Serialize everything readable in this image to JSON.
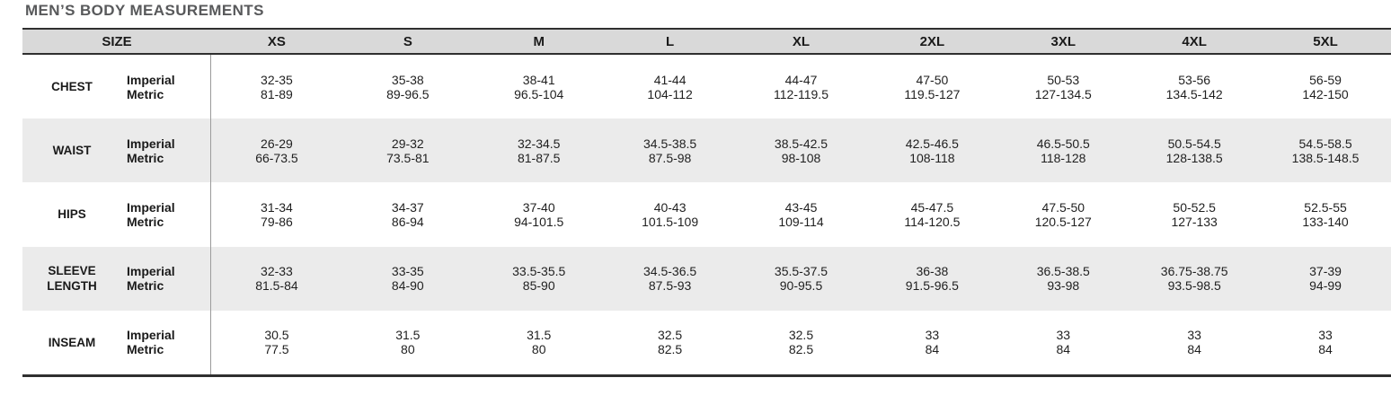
{
  "page": {
    "title": "MEN’S BODY MEASUREMENTS"
  },
  "colors": {
    "header_bg": "#d9d9d9",
    "alt_row_bg": "#ebebeb",
    "border_dark": "#2f2f2f",
    "divider_gray": "#9b9b9b",
    "title_color": "#58595b",
    "text_color": "#1f1f1f"
  },
  "chart_data": {
    "type": "table",
    "title": "MEN’S BODY MEASUREMENTS",
    "columns": [
      "SIZE",
      "XS",
      "S",
      "M",
      "L",
      "XL",
      "2XL",
      "3XL",
      "4XL",
      "5XL"
    ],
    "unit_rows": [
      "Imperial",
      "Metric"
    ],
    "rows": [
      {
        "label": "CHEST",
        "imperial": [
          "32-35",
          "35-38",
          "38-41",
          "41-44",
          "44-47",
          "47-50",
          "50-53",
          "53-56",
          "56-59"
        ],
        "metric": [
          "81-89",
          "89-96.5",
          "96.5-104",
          "104-112",
          "112-119.5",
          "119.5-127",
          "127-134.5",
          "134.5-142",
          "142-150"
        ]
      },
      {
        "label": "WAIST",
        "imperial": [
          "26-29",
          "29-32",
          "32-34.5",
          "34.5-38.5",
          "38.5-42.5",
          "42.5-46.5",
          "46.5-50.5",
          "50.5-54.5",
          "54.5-58.5"
        ],
        "metric": [
          "66-73.5",
          "73.5-81",
          "81-87.5",
          "87.5-98",
          "98-108",
          "108-118",
          "118-128",
          "128-138.5",
          "138.5-148.5"
        ]
      },
      {
        "label": "HIPS",
        "imperial": [
          "31-34",
          "34-37",
          "37-40",
          "40-43",
          "43-45",
          "45-47.5",
          "47.5-50",
          "50-52.5",
          "52.5-55"
        ],
        "metric": [
          "79-86",
          "86-94",
          "94-101.5",
          "101.5-109",
          "109-114",
          "114-120.5",
          "120.5-127",
          "127-133",
          "133-140"
        ]
      },
      {
        "label": "SLEEVE LENGTH",
        "imperial": [
          "32-33",
          "33-35",
          "33.5-35.5",
          "34.5-36.5",
          "35.5-37.5",
          "36-38",
          "36.5-38.5",
          "36.75-38.75",
          "37-39"
        ],
        "metric": [
          "81.5-84",
          "84-90",
          "85-90",
          "87.5-93",
          "90-95.5",
          "91.5-96.5",
          "93-98",
          "93.5-98.5",
          "94-99"
        ]
      },
      {
        "label": "INSEAM",
        "imperial": [
          "30.5",
          "31.5",
          "31.5",
          "32.5",
          "32.5",
          "33",
          "33",
          "33",
          "33"
        ],
        "metric": [
          "77.5",
          "80",
          "80",
          "82.5",
          "82.5",
          "84",
          "84",
          "84",
          "84"
        ]
      }
    ]
  }
}
